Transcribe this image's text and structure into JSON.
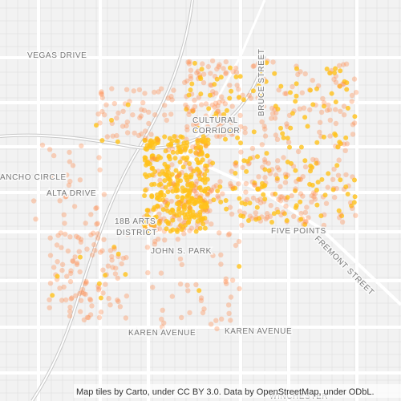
{
  "labels": {
    "vegas_drive": "VEGAS DRIVE",
    "cultural": "CULTURAL",
    "corridor": "CORRIDOR",
    "bruce_street": "BRUCE STREET",
    "rancho_circle": "ANCHO CIRCLE",
    "alta_drive": "ALTA DRIVE",
    "arts": "18B ARTS",
    "district": "DISTRICT",
    "john_s_park": "JOHN S. PARK",
    "five_points": "FIVE POINTS",
    "fremont_street": "FREMONT STREET",
    "karen_avenue_1": "KAREN AVENUE",
    "karen_avenue_2": "KAREN AVENUE",
    "winchester": "WINCHESTER"
  },
  "attribution": "Map tiles by Carto, under CC BY 3.0. Data by OpenStreetMap, under ODbL."
}
